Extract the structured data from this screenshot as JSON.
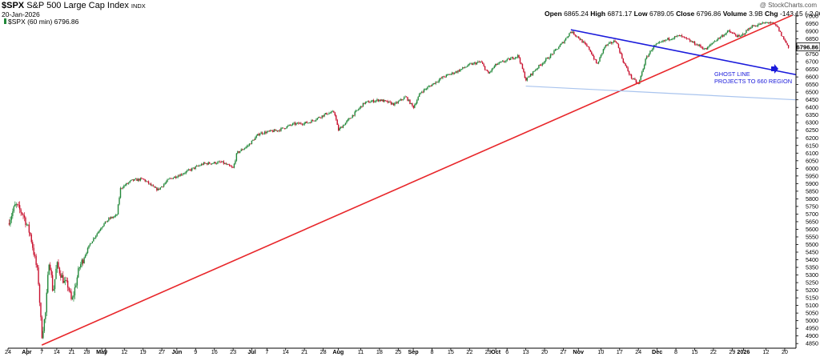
{
  "header": {
    "symbol": "$SPX",
    "name": "S&P 500 Large Cap Index",
    "exchange": "INDX",
    "date": "20-Jan-2026",
    "series_label": "$SPX (60 min) 6796.86",
    "watermark": "@ StockCharts.com",
    "ohlc": {
      "open_label": "Open",
      "open": "6865.24",
      "high_label": "High",
      "high": "6871.17",
      "low_label": "Low",
      "low": "6789.05",
      "close_label": "Close",
      "close": "6796.86",
      "volume_label": "Volume",
      "volume": "3.9B",
      "chg_label": "Chg",
      "chg": "-143.15 (-2.06%)"
    }
  },
  "chart_data": {
    "type": "candlestick",
    "title": "$SPX S&P 500 Large Cap Index",
    "interval": "60 min",
    "last_price_label": "6796.86",
    "ylim": [
      4830,
      7000
    ],
    "y_ticks": [
      4850,
      4900,
      4950,
      5000,
      5050,
      5100,
      5150,
      5200,
      5250,
      5300,
      5350,
      5400,
      5450,
      5500,
      5550,
      5600,
      5650,
      5700,
      5750,
      5800,
      5850,
      5900,
      5950,
      6000,
      6050,
      6100,
      6150,
      6200,
      6250,
      6300,
      6350,
      6400,
      6450,
      6500,
      6550,
      6600,
      6650,
      6700,
      6750,
      6800,
      6850,
      6900,
      6950,
      7000
    ],
    "x_ticks": [
      {
        "label": "24",
        "i": 0
      },
      {
        "label": "Apr",
        "i": 5
      },
      {
        "label": "7",
        "i": 9
      },
      {
        "label": "14",
        "i": 13
      },
      {
        "label": "21",
        "i": 17
      },
      {
        "label": "28",
        "i": 21
      },
      {
        "label": "May",
        "i": 25
      },
      {
        "label": "5",
        "i": 26
      },
      {
        "label": "12",
        "i": 31
      },
      {
        "label": "19",
        "i": 36
      },
      {
        "label": "27",
        "i": 41
      },
      {
        "label": "Jun",
        "i": 45
      },
      {
        "label": "9",
        "i": 50
      },
      {
        "label": "16",
        "i": 55
      },
      {
        "label": "23",
        "i": 60
      },
      {
        "label": "Jul",
        "i": 65
      },
      {
        "label": "7",
        "i": 69
      },
      {
        "label": "14",
        "i": 74
      },
      {
        "label": "21",
        "i": 79
      },
      {
        "label": "28",
        "i": 84
      },
      {
        "label": "Aug",
        "i": 88
      },
      {
        "label": "11",
        "i": 94
      },
      {
        "label": "18",
        "i": 99
      },
      {
        "label": "25",
        "i": 104
      },
      {
        "label": "Sep",
        "i": 108
      },
      {
        "label": "8",
        "i": 113
      },
      {
        "label": "15",
        "i": 118
      },
      {
        "label": "22",
        "i": 123
      },
      {
        "label": "29",
        "i": 128
      },
      {
        "label": "Oct",
        "i": 130
      },
      {
        "label": "6",
        "i": 133
      },
      {
        "label": "13",
        "i": 138
      },
      {
        "label": "20",
        "i": 143
      },
      {
        "label": "27",
        "i": 148
      },
      {
        "label": "Nov",
        "i": 152
      },
      {
        "label": "10",
        "i": 158
      },
      {
        "label": "17",
        "i": 163
      },
      {
        "label": "24",
        "i": 168
      },
      {
        "label": "Dec",
        "i": 173
      },
      {
        "label": "8",
        "i": 178
      },
      {
        "label": "15",
        "i": 183
      },
      {
        "label": "22",
        "i": 188
      },
      {
        "label": "29",
        "i": 193
      },
      {
        "label": "2026",
        "i": 196
      },
      {
        "label": "12",
        "i": 202
      },
      {
        "label": "20",
        "i": 207
      }
    ],
    "n_slots": 210,
    "key_points": [
      {
        "i": 0,
        "v": 5640
      },
      {
        "i": 2,
        "v": 5760
      },
      {
        "i": 4,
        "v": 5700
      },
      {
        "i": 6,
        "v": 5560
      },
      {
        "i": 8,
        "v": 5300
      },
      {
        "i": 9,
        "v": 4900
      },
      {
        "i": 10,
        "v": 5050
      },
      {
        "i": 11,
        "v": 5420
      },
      {
        "i": 12,
        "v": 5180
      },
      {
        "i": 13,
        "v": 5370
      },
      {
        "i": 15,
        "v": 5250
      },
      {
        "i": 16,
        "v": 5230
      },
      {
        "i": 17,
        "v": 5120
      },
      {
        "i": 19,
        "v": 5350
      },
      {
        "i": 22,
        "v": 5510
      },
      {
        "i": 25,
        "v": 5620
      },
      {
        "i": 27,
        "v": 5670
      },
      {
        "i": 29,
        "v": 5690
      },
      {
        "i": 30,
        "v": 5870
      },
      {
        "i": 33,
        "v": 5920
      },
      {
        "i": 36,
        "v": 5930
      },
      {
        "i": 39,
        "v": 5870
      },
      {
        "i": 40,
        "v": 5860
      },
      {
        "i": 43,
        "v": 5930
      },
      {
        "i": 46,
        "v": 5960
      },
      {
        "i": 52,
        "v": 6030
      },
      {
        "i": 57,
        "v": 6040
      },
      {
        "i": 60,
        "v": 6000
      },
      {
        "i": 61,
        "v": 6100
      },
      {
        "i": 64,
        "v": 6150
      },
      {
        "i": 67,
        "v": 6230
      },
      {
        "i": 72,
        "v": 6250
      },
      {
        "i": 76,
        "v": 6290
      },
      {
        "i": 80,
        "v": 6300
      },
      {
        "i": 85,
        "v": 6360
      },
      {
        "i": 87,
        "v": 6370
      },
      {
        "i": 88,
        "v": 6250
      },
      {
        "i": 90,
        "v": 6300
      },
      {
        "i": 95,
        "v": 6430
      },
      {
        "i": 99,
        "v": 6450
      },
      {
        "i": 103,
        "v": 6420
      },
      {
        "i": 106,
        "v": 6470
      },
      {
        "i": 108,
        "v": 6400
      },
      {
        "i": 110,
        "v": 6500
      },
      {
        "i": 116,
        "v": 6600
      },
      {
        "i": 120,
        "v": 6640
      },
      {
        "i": 123,
        "v": 6680
      },
      {
        "i": 126,
        "v": 6700
      },
      {
        "i": 128,
        "v": 6620
      },
      {
        "i": 130,
        "v": 6680
      },
      {
        "i": 136,
        "v": 6740
      },
      {
        "i": 138,
        "v": 6580
      },
      {
        "i": 141,
        "v": 6660
      },
      {
        "i": 145,
        "v": 6750
      },
      {
        "i": 148,
        "v": 6830
      },
      {
        "i": 150,
        "v": 6900
      },
      {
        "i": 152,
        "v": 6860
      },
      {
        "i": 155,
        "v": 6780
      },
      {
        "i": 157,
        "v": 6680
      },
      {
        "i": 159,
        "v": 6800
      },
      {
        "i": 162,
        "v": 6840
      },
      {
        "i": 164,
        "v": 6700
      },
      {
        "i": 166,
        "v": 6600
      },
      {
        "i": 168,
        "v": 6550
      },
      {
        "i": 170,
        "v": 6720
      },
      {
        "i": 172,
        "v": 6800
      },
      {
        "i": 176,
        "v": 6850
      },
      {
        "i": 179,
        "v": 6870
      },
      {
        "i": 183,
        "v": 6820
      },
      {
        "i": 186,
        "v": 6780
      },
      {
        "i": 188,
        "v": 6830
      },
      {
        "i": 192,
        "v": 6900
      },
      {
        "i": 195,
        "v": 6860
      },
      {
        "i": 198,
        "v": 6930
      },
      {
        "i": 201,
        "v": 6950
      },
      {
        "i": 203,
        "v": 6960
      },
      {
        "i": 205,
        "v": 6930
      },
      {
        "i": 206,
        "v": 6880
      },
      {
        "i": 208,
        "v": 6797
      }
    ],
    "trendlines": [
      {
        "name": "red-support",
        "color": "#e8262a",
        "p1": {
          "i": 9,
          "v": 4840
        },
        "p2": {
          "i": 209,
          "v": 7005
        }
      },
      {
        "name": "blue-resistance",
        "color": "#1a1adb",
        "p1": {
          "i": 150,
          "v": 6910
        },
        "p2": {
          "i": 210,
          "v": 6615
        }
      },
      {
        "name": "ghost-line",
        "color": "#a9c4ee",
        "p1": {
          "i": 138,
          "v": 6540
        },
        "p2": {
          "i": 210,
          "v": 6450
        }
      }
    ],
    "annotation": {
      "line1": "GHOST LINE",
      "line2": "PROJECTS TO 660 REGION",
      "arrow_color": "#1a1adb"
    },
    "colors": {
      "up": "#22883a",
      "down": "#c8102e",
      "axis": "#000000"
    }
  }
}
